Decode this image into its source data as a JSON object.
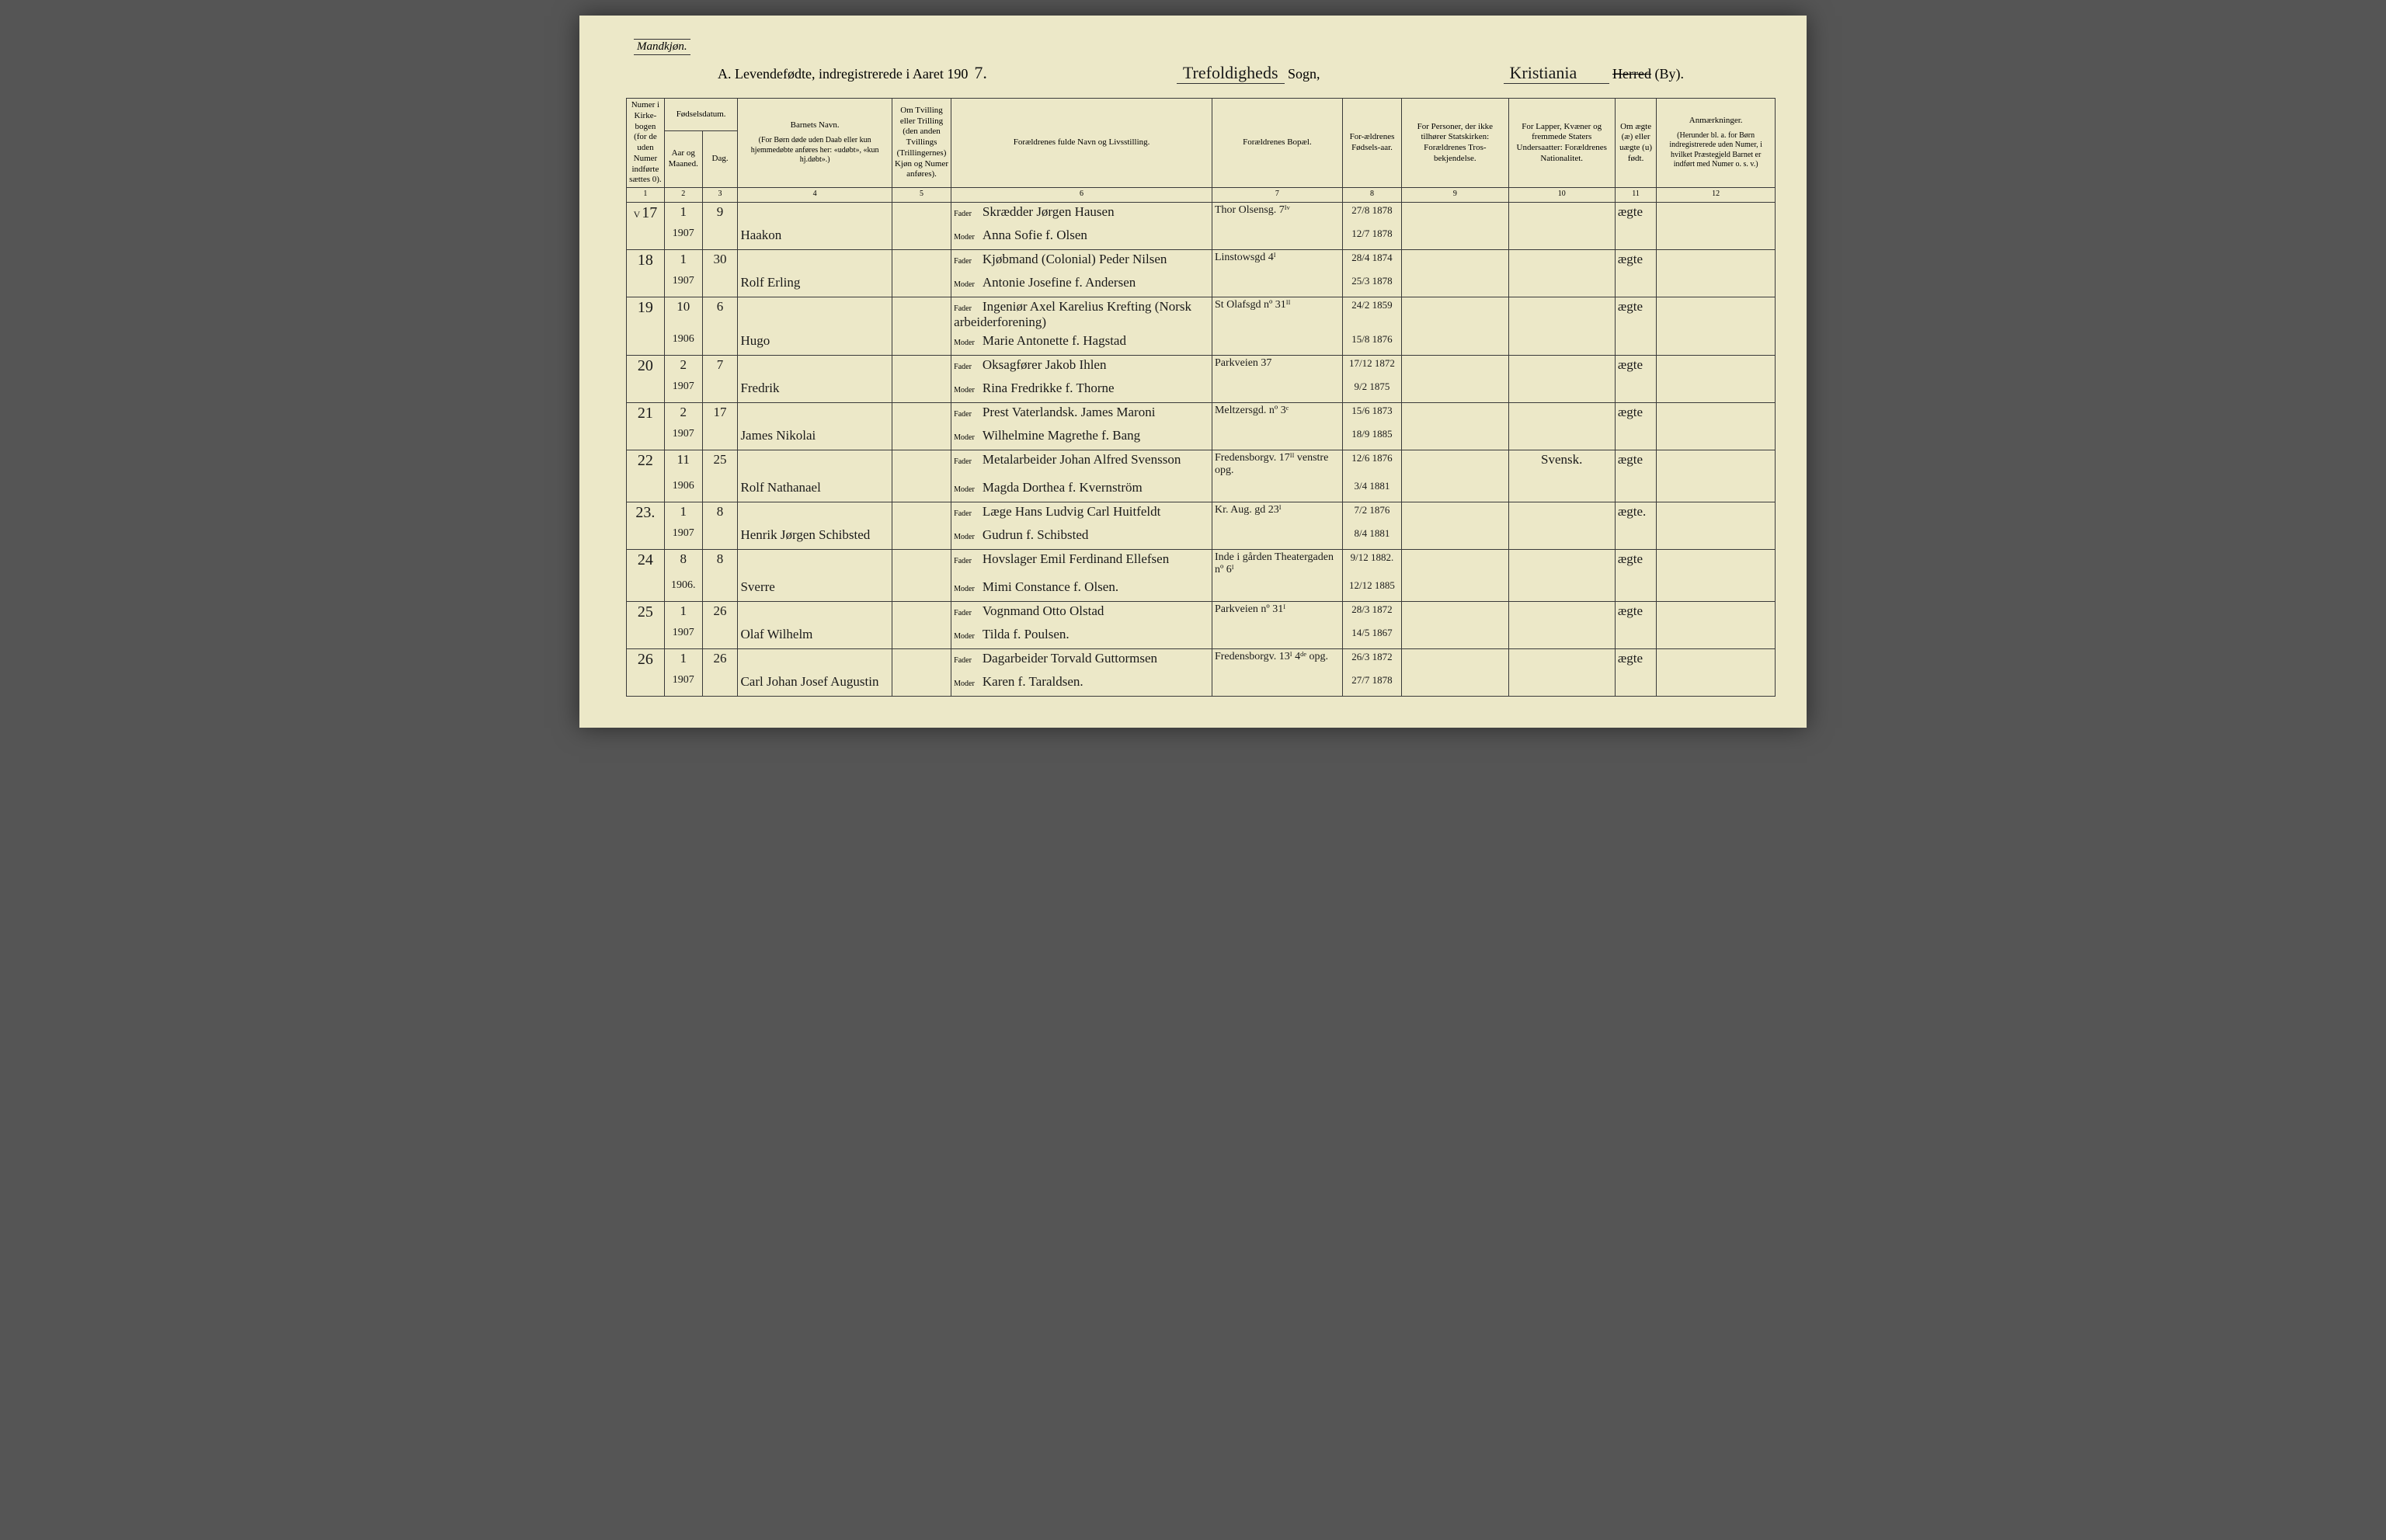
{
  "header": {
    "gender": "Mandkjøn.",
    "title_prefix": "A.  Levendefødte, indregistrerede i Aaret 190",
    "year_suffix": "7.",
    "sogn_hand": "Trefoldigheds",
    "sogn_label": "Sogn,",
    "herred_hand": "Kristiania",
    "herred_strike": "Herred",
    "herred_label": "(By)."
  },
  "columns": {
    "c1": "Numer i Kirke-bogen (for de uden Numer indførte sættes 0).",
    "c2_top": "Fødselsdatum.",
    "c2a": "Aar og Maaned.",
    "c2b": "Dag.",
    "c4a": "Barnets Navn.",
    "c4b": "(For Børn døde uden Daab eller kun hjemmedøbte anføres her: «udøbt», «kun hj.døbt».)",
    "c5": "Om Tvilling eller Trilling (den anden Tvillings (Trillingernes) Kjøn og Numer anføres).",
    "c6": "Forældrenes fulde Navn og Livsstilling.",
    "c7": "Forældrenes Bopæl.",
    "c8": "For-ældrenes Fødsels-aar.",
    "c9": "For Personer, der ikke tilhører Statskirken: Forældrenes Tros-bekjendelse.",
    "c10": "For Lapper, Kvæner og fremmede Staters Undersaatter: Forældrenes Nationalitet.",
    "c11": "Om ægte (æ) eller uægte (u) født.",
    "c12a": "Anmærkninger.",
    "c12b": "(Herunder bl. a. for Børn indregistrerede uden Numer, i hvilket Præstegjeld Barnet er indført med Numer o. s. v.)"
  },
  "colnums": [
    "1",
    "2",
    "3",
    "4",
    "5",
    "6",
    "7",
    "8",
    "9",
    "10",
    "11",
    "12"
  ],
  "labels": {
    "fader": "Fader",
    "moder": "Moder"
  },
  "rows": [
    {
      "mark": "V",
      "num": "17",
      "ym": "1\n1907",
      "day": "9",
      "name": "Haakon",
      "fader": "Skrædder  Jørgen  Hausen",
      "moder": "Anna  Sofie  f.  Olsen",
      "bopel": "Thor Olsensg. 7ᴵᵛ",
      "faar": "27/8 1878",
      "maar": "12/7 1878",
      "nat": "",
      "aegte": "ægte"
    },
    {
      "num": "18",
      "ym": "1\n1907",
      "day": "30",
      "name": "Rolf  Erling",
      "fader": "Kjøbmand (Colonial)  Peder Nilsen",
      "moder": "Antonie Josefine  f.  Andersen",
      "bopel": "Linstowsgd 4ᴵ",
      "faar": "28/4 1874",
      "maar": "25/3 1878",
      "nat": "",
      "aegte": "ægte"
    },
    {
      "num": "19",
      "ym": "10\n1906",
      "day": "6",
      "name": "Hugo",
      "fader": "Ingeniør Axel Karelius Krefting (Norsk arbeiderforening)",
      "moder": "Marie Antonette  f.  Hagstad",
      "bopel": "St Olafsgd nº 31ᴵᴵ",
      "faar": "24/2 1859",
      "maar": "15/8 1876",
      "nat": "",
      "aegte": "ægte"
    },
    {
      "num": "20",
      "ym": "2\n1907",
      "day": "7",
      "name": "Fredrik",
      "fader": "Oksagfører  Jakob  Ihlen",
      "moder": "Rina  Fredrikke  f.  Thorne",
      "bopel": "Parkveien 37",
      "faar": "17/12 1872",
      "maar": "9/2 1875",
      "nat": "",
      "aegte": "ægte"
    },
    {
      "num": "21",
      "ym": "2\n1907",
      "day": "17",
      "name": "James  Nikolai",
      "fader": "Prest Vaterlandsk.  James  Maroni",
      "moder": "Wilhelmine  Magrethe  f.  Bang",
      "bopel": "Meltzersgd. nº 3ᶜ",
      "faar": "15/6 1873",
      "maar": "18/9 1885",
      "nat": "",
      "aegte": "ægte"
    },
    {
      "num": "22",
      "ym": "11\n1906",
      "day": "25",
      "name": "Rolf  Nathanael",
      "fader": "Metalarbeider Johan Alfred Svensson",
      "moder": "Magda Dorthea  f.  Kvernström",
      "bopel": "Fredensborgv. 17ᴵᴵ venstre opg.",
      "faar": "12/6 1876",
      "maar": "3/4 1881",
      "nat": "Svensk.",
      "aegte": "ægte"
    },
    {
      "num": "23.",
      "ym": "1\n1907",
      "day": "8",
      "name": "Henrik Jørgen Schibsted",
      "fader": "Læge  Hans Ludvig Carl Huitfeldt",
      "moder": "Gudrun  f.  Schibsted",
      "bopel": "Kr. Aug. gd 23ᴵ",
      "faar": "7/2 1876",
      "maar": "8/4 1881",
      "nat": "",
      "aegte": "ægte."
    },
    {
      "num": "24",
      "ym": "8\n1906.",
      "day": "8",
      "name": "Sverre",
      "fader": "Hovslager  Emil Ferdinand Ellefsen",
      "moder": "Mimi Constance  f.  Olsen.",
      "bopel": "Inde i gården Theatergaden nº 6ᴵ",
      "faar": "9/12 1882.",
      "maar": "12/12 1885",
      "nat": "",
      "aegte": "ægte"
    },
    {
      "num": "25",
      "ym": "1\n1907",
      "day": "26",
      "name": "Olaf  Wilhelm",
      "fader": "Vognmand   Otto  Olstad",
      "moder": "Tilda  f.  Poulsen.",
      "bopel": "Parkveien nº 31ᴵ",
      "faar": "28/3 1872",
      "maar": "14/5 1867",
      "nat": "",
      "aegte": "ægte"
    },
    {
      "num": "26",
      "ym": "1\n1907",
      "day": "26",
      "name": "Carl Johan Josef Augustin",
      "fader": "Dagarbeider  Torvald Guttormsen",
      "moder": "Karen  f.  Taraldsen.",
      "bopel": "Fredensborgv. 13ᴵ 4ᵈᵉ opg.",
      "faar": "26/3 1872",
      "maar": "27/7 1878",
      "nat": "",
      "aegte": "ægte"
    }
  ]
}
